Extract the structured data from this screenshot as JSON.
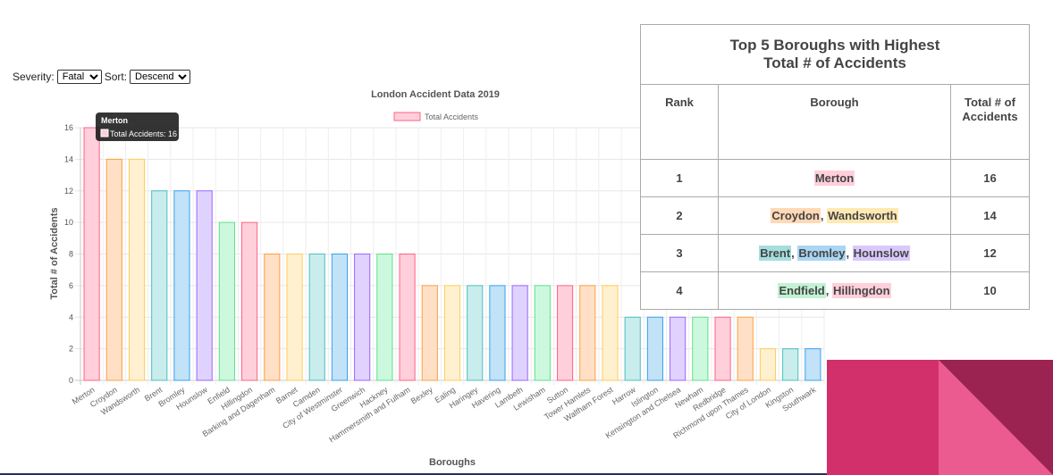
{
  "controls": {
    "severity_label": "Severity:",
    "severity_value": "Fatal",
    "sort_label": "Sort:",
    "sort_value": "Descending"
  },
  "chart_data": {
    "type": "bar",
    "title": "London Accident Data 2019",
    "xlabel": "Boroughs",
    "ylabel": "Total # of Accidents",
    "legend": "Total Accidents",
    "legend_placement": "top-center",
    "grid": true,
    "ylim": [
      0,
      16
    ],
    "yticks": [
      0,
      2,
      4,
      6,
      8,
      10,
      12,
      14,
      16
    ],
    "categories": [
      "Merton",
      "Croydon",
      "Wandsworth",
      "Brent",
      "Bromley",
      "Hounslow",
      "Enfield",
      "Hillingdon",
      "Barking and Dagenham",
      "Barnet",
      "Camden",
      "City of Westminster",
      "Greenwich",
      "Hackney",
      "Hammersmith and Fulham",
      "Bexley",
      "Ealing",
      "Haringey",
      "Havering",
      "Lambeth",
      "Lewisham",
      "Sutton",
      "Tower Hamlets",
      "Waltham Forest",
      "Harrow",
      "Islington",
      "Kensington and Chelsea",
      "Newham",
      "Redbridge",
      "Richmond upon Thames",
      "City of London",
      "Kingston",
      "Southwark"
    ],
    "values": [
      16,
      14,
      14,
      12,
      12,
      12,
      10,
      10,
      8,
      8,
      8,
      8,
      8,
      8,
      8,
      6,
      6,
      6,
      6,
      6,
      6,
      6,
      6,
      6,
      4,
      4,
      4,
      4,
      4,
      4,
      2,
      2,
      2
    ],
    "palette": [
      {
        "fill": "#ffcfdb",
        "stroke": "#ff6384"
      },
      {
        "fill": "#ffe0c6",
        "stroke": "#ff9f40"
      },
      {
        "fill": "#fff0cf",
        "stroke": "#ffcd56"
      },
      {
        "fill": "#c9ecec",
        "stroke": "#4bc0c0"
      },
      {
        "fill": "#c2e2f8",
        "stroke": "#36a2eb"
      },
      {
        "fill": "#e0d2ff",
        "stroke": "#9966ff"
      },
      {
        "fill": "#ccf9de",
        "stroke": "#5ee08a"
      }
    ],
    "tooltip": {
      "title": "Merton",
      "body": "Total Accidents: 16"
    }
  },
  "table": {
    "caption_line1": "Top 5 Boroughs with Highest",
    "caption_line2": "Total # of Accidents",
    "headers": [
      "Rank",
      "Borough",
      "Total # of\nAccidents"
    ],
    "rows": [
      {
        "rank": "1",
        "boroughs": [
          {
            "name": "Merton",
            "color": "#ffcfdb"
          }
        ],
        "total": "16"
      },
      {
        "rank": "2",
        "boroughs": [
          {
            "name": "Croydon",
            "color": "#ffd8b6"
          },
          {
            "name": "Wandsworth",
            "color": "#ffe9b3"
          }
        ],
        "total": "14"
      },
      {
        "rank": "3",
        "boroughs": [
          {
            "name": "Brent",
            "color": "#a6dede"
          },
          {
            "name": "Bromley",
            "color": "#a9d6f3"
          },
          {
            "name": "Hounslow",
            "color": "#d9c8fb"
          }
        ],
        "total": "12"
      },
      {
        "rank": "4",
        "boroughs": [
          {
            "name": "Endfield",
            "color": "#c2f2d3"
          },
          {
            "name": "Hillingdon",
            "color": "#ffcfdb"
          }
        ],
        "total": "10"
      }
    ]
  },
  "decoration": {
    "colors": [
      "#d2306a",
      "#ec5b8f",
      "#9a2352"
    ]
  }
}
